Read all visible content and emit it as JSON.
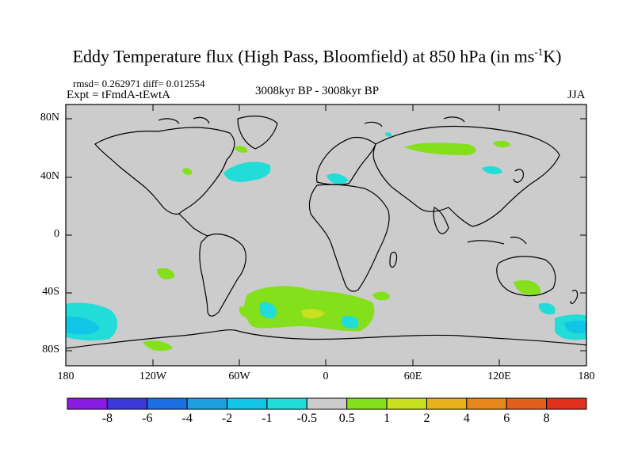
{
  "title": {
    "main": "Eddy Temperature flux (High Pass, Bloomfield) at 850 hPa (in ms",
    "exponent": "-1",
    "unit_tail": "K)"
  },
  "stats": {
    "text": "rmsd= 0.262971 diff= 0.012554"
  },
  "expt": {
    "text": "Expt = tFmdA-tEwtA"
  },
  "period": {
    "text": "3008kyr BP - 3008kyr BP"
  },
  "season": {
    "text": "JJA"
  },
  "lat_ticks": [
    "80N",
    "40N",
    "0",
    "40S",
    "80S"
  ],
  "lon_ticks": [
    "180",
    "120W",
    "60W",
    "0",
    "60E",
    "120E",
    "180"
  ],
  "colorbar": {
    "labels": [
      "-8",
      "-6",
      "-4",
      "-2",
      "-1",
      "-0.5",
      "0.5",
      "1",
      "2",
      "4",
      "6",
      "8"
    ],
    "colors": [
      "#8a1be0",
      "#3a3ad8",
      "#1c6fe0",
      "#1e9fe0",
      "#12c4e6",
      "#22dcd8",
      "#cccccc",
      "#84e01a",
      "#c8e020",
      "#e6b21c",
      "#e8881c",
      "#e0601c",
      "#e0301c"
    ]
  },
  "map_colors": {
    "ocean": "#cccccc",
    "positive_weak": "#84e01a",
    "positive_mid": "#c8e020",
    "negative_weak": "#22dcd8",
    "negative_mid": "#12c4e6"
  }
}
